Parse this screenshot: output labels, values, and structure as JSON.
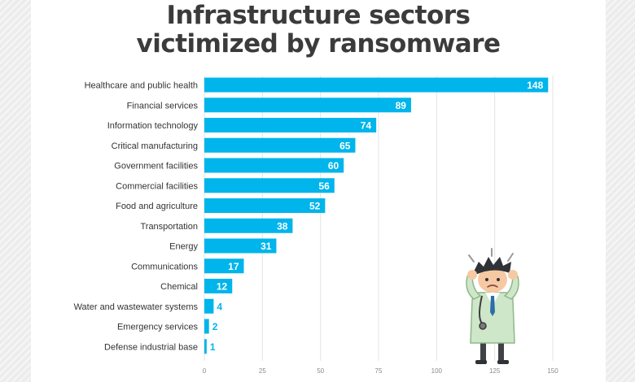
{
  "chart_data": {
    "type": "bar",
    "orientation": "horizontal",
    "title_lines": [
      "Infrastructure sectors",
      "victimized by ransomware"
    ],
    "categories": [
      "Healthcare and public health",
      "Financial services",
      "Information technology",
      "Critical manufacturing",
      "Government facilities",
      "Commercial facilities",
      "Food and agriculture",
      "Transportation",
      "Energy",
      "Communications",
      "Chemical",
      "Water and wastewater systems",
      "Emergency services",
      "Defense industrial base"
    ],
    "values": [
      148,
      89,
      74,
      65,
      60,
      56,
      52,
      38,
      31,
      17,
      12,
      4,
      2,
      1
    ],
    "xlim": [
      0,
      150
    ],
    "xticks": [
      0,
      25,
      50,
      75,
      100,
      125,
      150
    ],
    "grid": true,
    "bar_color": "#00b5eb"
  },
  "illustration": "worried-doctor-with-stethoscope"
}
